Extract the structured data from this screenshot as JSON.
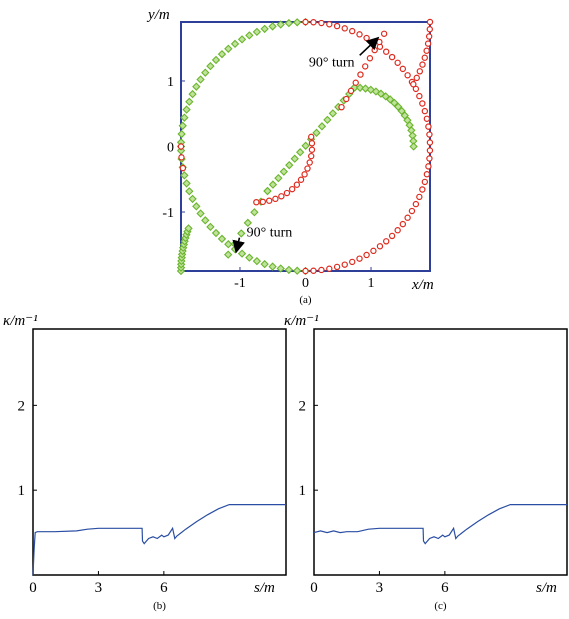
{
  "chart_data": [
    {
      "type": "scatter",
      "panel_label": "(a)",
      "ylabel": "y/m",
      "xlabel": "x/m",
      "xlim": [
        -1.9,
        1.9
      ],
      "ylim": [
        -1.9,
        1.9
      ],
      "xticks": [
        -1,
        0,
        1
      ],
      "xtick_labels": [
        "-1",
        "0",
        "1"
      ],
      "yticks": [
        -1,
        0,
        1
      ],
      "ytick_labels": [
        "-1",
        "0",
        "1"
      ],
      "frame_color": "#2e3f9a",
      "annotations": [
        {
          "text": "90° turn",
          "x": 0.4,
          "y": 1.3,
          "arrow_to": [
            1.2,
            1.72
          ]
        },
        {
          "text": "90° turn",
          "x": -0.55,
          "y": -1.3,
          "arrow_to": [
            -1.15,
            -1.67
          ]
        }
      ],
      "series": [
        {
          "marker": "diamond",
          "color": "#6ab42d",
          "fill": "#bfe39a",
          "segments": [
            {
              "kind": "arc",
              "cx": 0,
              "cy": 0,
              "r": 1.9,
              "a0": 90,
              "a1": 270,
              "n": 48
            },
            {
              "kind": "arc",
              "cx": 0,
              "cy": -1.9,
              "r": 1.9,
              "a0": 180,
              "a1": 160,
              "n": 14
            },
            {
              "kind": "line",
              "x0": -1.18,
              "y0": -1.65,
              "x1": -0.58,
              "y1": -0.68,
              "n": 7
            },
            {
              "kind": "line",
              "x0": -0.58,
              "y0": -0.68,
              "x1": 0.75,
              "y1": 0.9,
              "n": 17
            },
            {
              "kind": "arc",
              "cx": 0.75,
              "cy": 0,
              "r": 0.9,
              "a0": 90,
              "a1": 0,
              "n": 18
            },
            {
              "kind": "line",
              "x0": -1.9,
              "y0": 0,
              "x1": -1.9,
              "y1": 0,
              "n": 1
            }
          ]
        },
        {
          "marker": "circle",
          "color": "#dd2a1e",
          "fill": "#ffffff",
          "segments": [
            {
              "kind": "arc",
              "cx": 0,
              "cy": 0,
              "r": 1.9,
              "a0": -90,
              "a1": 90,
              "n": 50
            },
            {
              "kind": "arc",
              "cx": 0,
              "cy": 1.9,
              "r": 1.9,
              "a0": 0,
              "a1": -30,
              "n": 10
            },
            {
              "kind": "line",
              "x0": 1.2,
              "y0": 1.72,
              "x1": 0.55,
              "y1": 0.6,
              "n": 10
            },
            {
              "kind": "arc",
              "cx": -0.75,
              "cy": 0,
              "r": 0.85,
              "a0": 10,
              "a1": -90,
              "n": 16
            },
            {
              "kind": "arc",
              "cx": 0,
              "cy": 0,
              "r": 1.9,
              "a0": 180,
              "a1": 190,
              "n": 3
            }
          ]
        }
      ]
    },
    {
      "type": "line",
      "panel_label": "(b)",
      "ylabel": "κ/m⁻¹",
      "xlabel": "s/m",
      "xlim": [
        0,
        11.6
      ],
      "ylim": [
        0,
        2.9
      ],
      "xticks": [
        0,
        3,
        6
      ],
      "xtick_labels": [
        "0",
        "3",
        "6"
      ],
      "yticks": [
        1,
        2
      ],
      "ytick_labels": [
        "1",
        "2"
      ],
      "line_color": "#2a4ea3",
      "x": [
        0,
        0.05,
        0.1,
        0.2,
        0.5,
        1.0,
        2.0,
        2.5,
        3.0,
        4.0,
        5.0,
        5.02,
        5.1,
        5.3,
        5.5,
        5.7,
        5.9,
        6.0,
        6.2,
        6.4,
        6.5,
        6.6,
        6.8,
        7.0,
        7.5,
        8.0,
        8.5,
        9.0,
        10.0,
        11.6
      ],
      "y": [
        0,
        0.3,
        0.5,
        0.51,
        0.51,
        0.51,
        0.52,
        0.54,
        0.55,
        0.55,
        0.55,
        0.4,
        0.37,
        0.43,
        0.45,
        0.43,
        0.47,
        0.45,
        0.47,
        0.55,
        0.43,
        0.46,
        0.5,
        0.54,
        0.63,
        0.71,
        0.78,
        0.83,
        0.83,
        0.83
      ]
    },
    {
      "type": "line",
      "panel_label": "(c)",
      "ylabel": "κ/m⁻¹",
      "xlabel": "s/m",
      "xlim": [
        0,
        11.6
      ],
      "ylim": [
        0,
        2.9
      ],
      "xticks": [
        0,
        3,
        6
      ],
      "xtick_labels": [
        "0",
        "3",
        "6"
      ],
      "yticks": [
        1,
        2
      ],
      "ytick_labels": [
        "1",
        "2"
      ],
      "line_color": "#2a4ea3",
      "x": [
        0,
        0.3,
        0.6,
        0.9,
        1.2,
        1.5,
        2.0,
        2.5,
        3.0,
        4.0,
        5.0,
        5.02,
        5.1,
        5.3,
        5.5,
        5.7,
        5.9,
        6.0,
        6.2,
        6.4,
        6.5,
        6.6,
        6.8,
        7.0,
        7.5,
        8.0,
        8.5,
        9.0,
        10.0,
        11.6
      ],
      "y": [
        0.5,
        0.52,
        0.5,
        0.52,
        0.5,
        0.51,
        0.51,
        0.54,
        0.55,
        0.55,
        0.55,
        0.4,
        0.37,
        0.43,
        0.45,
        0.43,
        0.47,
        0.45,
        0.47,
        0.55,
        0.43,
        0.46,
        0.5,
        0.54,
        0.63,
        0.71,
        0.78,
        0.83,
        0.83,
        0.83
      ]
    }
  ]
}
